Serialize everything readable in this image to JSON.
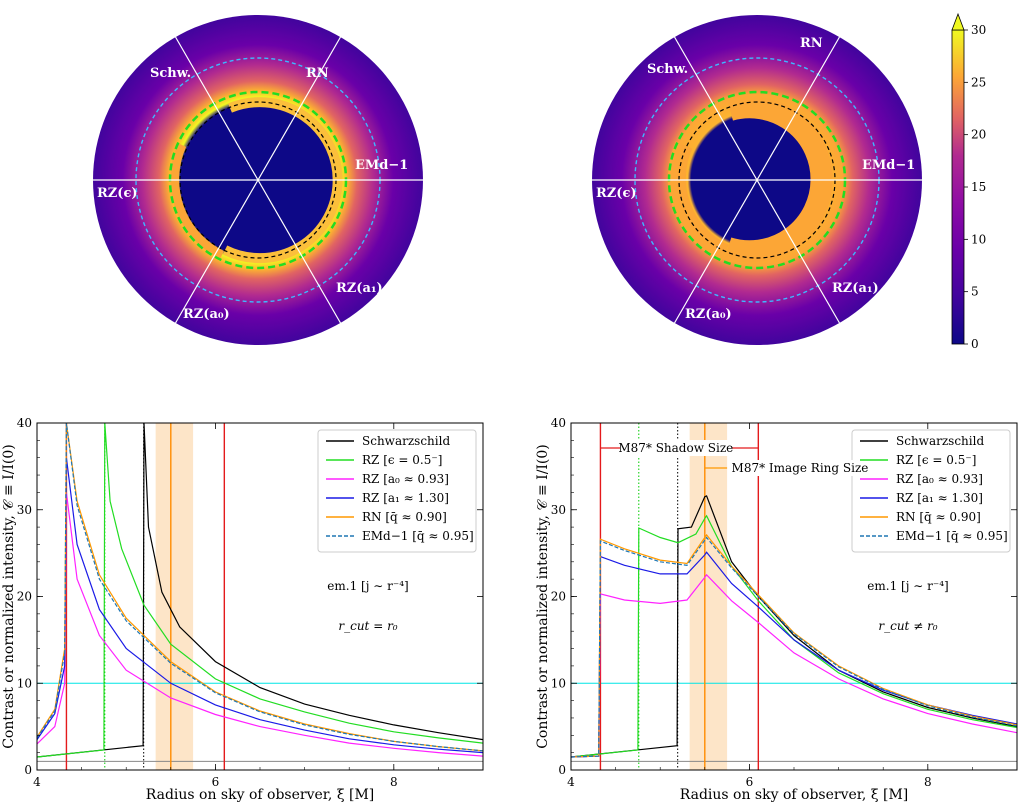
{
  "images": {
    "sector_labels": [
      "RN",
      "Schw.",
      "EMd−1",
      "RZ(ϵ)",
      "RZ(a₁)",
      "RZ(a₀)"
    ],
    "colorbar": {
      "ticks": [
        0,
        5,
        10,
        15,
        20,
        25,
        30
      ],
      "min": 0,
      "max": 30,
      "extend": "max",
      "colormap": "plasma"
    }
  },
  "chart_data": [
    {
      "type": "line",
      "panel": "left",
      "xlabel": "Radius on sky of observer, ξ [M]",
      "ylabel": "Contrast or normalized intensity, 𝒞 ≡ I/I(0)",
      "xlim": [
        4,
        9
      ],
      "ylim": [
        0,
        40
      ],
      "xticks": [
        4,
        6,
        8
      ],
      "yticks": [
        0,
        10,
        20,
        30,
        40
      ],
      "note_model": "em.1",
      "note_emissivity": "[j ∼ r⁻⁴]",
      "note_cut": "r_cut = r₀",
      "hlines": [
        {
          "y": 10,
          "color": "#00e5e5"
        },
        {
          "y": 1,
          "color": "#888888"
        }
      ],
      "vlines": [
        {
          "x": 4.33,
          "color": "#e41a1c",
          "style": "solid"
        },
        {
          "x": 6.1,
          "color": "#e41a1c",
          "style": "solid"
        },
        {
          "x": 5.5,
          "color": "#ff8c00",
          "style": "solid"
        },
        {
          "x": 4.76,
          "color": "#00cc00",
          "style": "dotted"
        },
        {
          "x": 5.196,
          "color": "#000000",
          "style": "dotted"
        }
      ],
      "band": {
        "x0": 5.33,
        "x1": 5.75,
        "color": "#fde5c8"
      },
      "series": [
        {
          "name": "Schwarzschild",
          "color": "#000000",
          "dash": false,
          "x": [
            4.0,
            5.19,
            5.2,
            5.25,
            5.4,
            5.6,
            6.0,
            6.5,
            7.0,
            7.5,
            8.0,
            8.5,
            9.0
          ],
          "values": [
            1.5,
            2.8,
            40,
            28,
            20.5,
            16.5,
            12.5,
            9.5,
            7.6,
            6.3,
            5.2,
            4.3,
            3.5
          ]
        },
        {
          "name": "RZ [ϵ = 0.5⁻]",
          "color": "#22dd22",
          "dash": false,
          "x": [
            4.0,
            4.75,
            4.76,
            4.82,
            4.95,
            5.2,
            5.5,
            6.0,
            6.5,
            7.0,
            7.5,
            8.0,
            8.5,
            9.0
          ],
          "values": [
            1.5,
            2.3,
            40,
            31,
            25.5,
            19,
            14.5,
            10.5,
            8.2,
            6.7,
            5.4,
            4.4,
            3.7,
            3.1
          ]
        },
        {
          "name": "RZ [a₀ ≈ 0.93]",
          "color": "#ff22ff",
          "dash": false,
          "x": [
            4.0,
            4.2,
            4.31,
            4.33,
            4.45,
            4.7,
            5.0,
            5.5,
            6.0,
            6.5,
            7.0,
            7.5,
            8.0,
            8.5,
            9.0
          ],
          "values": [
            3.0,
            5.0,
            10,
            32,
            22,
            15.5,
            11.5,
            8.3,
            6.4,
            5.0,
            4.0,
            3.1,
            2.5,
            2.0,
            1.6
          ]
        },
        {
          "name": "RZ [a₁ ≈ 1.30]",
          "color": "#1a1ae6",
          "dash": false,
          "x": [
            4.0,
            4.2,
            4.31,
            4.33,
            4.45,
            4.7,
            5.0,
            5.5,
            6.0,
            6.5,
            7.0,
            7.5,
            8.0,
            8.5,
            9.0
          ],
          "values": [
            3.5,
            6.5,
            12,
            36,
            26,
            18.5,
            14.0,
            10.0,
            7.5,
            5.8,
            4.6,
            3.6,
            2.9,
            2.4,
            2.0
          ]
        },
        {
          "name": "RN [q̄ ≈ 0.90]",
          "color": "#ff9900",
          "dash": false,
          "x": [
            4.0,
            4.2,
            4.31,
            4.33,
            4.45,
            4.7,
            5.0,
            5.5,
            6.0,
            6.5,
            7.0,
            7.5,
            8.0,
            8.5,
            9.0
          ],
          "values": [
            3.8,
            7.0,
            14,
            40,
            31,
            22.5,
            17.5,
            12.5,
            9.0,
            6.8,
            5.3,
            4.2,
            3.3,
            2.7,
            2.2
          ]
        },
        {
          "name": "EMd−1 [q̄ ≈ 0.95]",
          "color": "#1f77b4",
          "dash": true,
          "x": [
            4.0,
            4.2,
            4.31,
            4.33,
            4.45,
            4.7,
            5.0,
            5.5,
            6.0,
            6.5,
            7.0,
            7.5,
            8.0,
            8.5,
            9.0
          ],
          "values": [
            3.7,
            6.8,
            13.5,
            40,
            30.5,
            22,
            17.2,
            12.3,
            8.9,
            6.7,
            5.2,
            4.1,
            3.3,
            2.7,
            2.2
          ]
        }
      ]
    },
    {
      "type": "line",
      "panel": "right",
      "xlabel": "Radius on sky of observer, ξ [M]",
      "ylabel": "Contrast or normalized intensity, 𝒞 ≡ I/I(0)",
      "xlim": [
        4,
        9
      ],
      "ylim": [
        0,
        40
      ],
      "xticks": [
        4,
        6,
        8
      ],
      "yticks": [
        0,
        10,
        20,
        30,
        40
      ],
      "note_model": "em.1",
      "note_emissivity": "[j ∼ r⁻⁴]",
      "note_cut": "r_cut ≠ r₀",
      "annotation_shadow": "M87* Shadow Size",
      "annotation_ring": "M87* Image Ring Size",
      "hlines": [
        {
          "y": 10,
          "color": "#00e5e5"
        },
        {
          "y": 1,
          "color": "#888888"
        }
      ],
      "vlines": [
        {
          "x": 4.33,
          "color": "#e41a1c",
          "style": "solid"
        },
        {
          "x": 6.1,
          "color": "#e41a1c",
          "style": "solid"
        },
        {
          "x": 5.5,
          "color": "#ff8c00",
          "style": "solid"
        },
        {
          "x": 4.76,
          "color": "#00cc00",
          "style": "dotted"
        },
        {
          "x": 5.196,
          "color": "#000000",
          "style": "dotted"
        }
      ],
      "band": {
        "x0": 5.33,
        "x1": 5.75,
        "color": "#fde5c8"
      },
      "series": [
        {
          "name": "Schwarzschild",
          "color": "#000000",
          "dash": false,
          "x": [
            4.0,
            5.19,
            5.2,
            5.35,
            5.5,
            5.52,
            5.8,
            6.1,
            6.5,
            7.0,
            7.5,
            8.0,
            8.5,
            9.0
          ],
          "values": [
            1.5,
            2.8,
            27.8,
            28.0,
            31.5,
            31.6,
            24,
            20,
            15.5,
            11.5,
            9.0,
            7.2,
            6.0,
            5.0
          ]
        },
        {
          "name": "RZ [ϵ = 0.5⁻]",
          "color": "#22dd22",
          "dash": false,
          "x": [
            4.0,
            4.75,
            4.76,
            5.0,
            5.2,
            5.4,
            5.5,
            5.52,
            5.8,
            6.1,
            6.5,
            7.0,
            7.5,
            8.0,
            8.5,
            9.0
          ],
          "values": [
            1.5,
            2.3,
            27.9,
            26.8,
            26.2,
            27.2,
            29.0,
            29.3,
            23.5,
            19.5,
            15,
            11.2,
            8.8,
            7.0,
            5.8,
            4.9
          ]
        },
        {
          "name": "RZ [a₀ ≈ 0.93]",
          "color": "#ff22ff",
          "dash": false,
          "x": [
            4.0,
            4.31,
            4.33,
            4.6,
            5.0,
            5.3,
            5.5,
            5.52,
            5.8,
            6.1,
            6.5,
            7.0,
            7.5,
            8.0,
            8.5,
            9.0
          ],
          "values": [
            1.5,
            1.6,
            20.3,
            19.6,
            19.2,
            19.6,
            22.2,
            22.5,
            19.5,
            17,
            13.5,
            10.5,
            8.2,
            6.5,
            5.3,
            4.3
          ]
        },
        {
          "name": "RZ [a₁ ≈ 1.30]",
          "color": "#1a1ae6",
          "dash": false,
          "x": [
            4.0,
            4.31,
            4.33,
            4.6,
            5.0,
            5.3,
            5.5,
            5.52,
            5.8,
            6.1,
            6.5,
            7.0,
            7.5,
            8.0,
            8.5,
            9.0
          ],
          "values": [
            1.5,
            1.6,
            24.6,
            23.6,
            22.6,
            22.6,
            24.8,
            25.1,
            21.5,
            18.8,
            15,
            11.5,
            9.2,
            7.5,
            6.3,
            5.3
          ]
        },
        {
          "name": "RN [q̄ ≈ 0.90]",
          "color": "#ff9900",
          "dash": false,
          "x": [
            4.0,
            4.31,
            4.33,
            4.6,
            5.0,
            5.3,
            5.5,
            5.52,
            5.8,
            6.1,
            6.5,
            7.0,
            7.5,
            8.0,
            8.5,
            9.0
          ],
          "values": [
            1.5,
            1.6,
            26.6,
            25.5,
            24.2,
            23.8,
            26.8,
            27.1,
            23.5,
            20.2,
            15.8,
            12,
            9.4,
            7.5,
            6.2,
            5.2
          ]
        },
        {
          "name": "EMd−1 [q̄ ≈ 0.95]",
          "color": "#1f77b4",
          "dash": true,
          "x": [
            4.0,
            4.31,
            4.33,
            4.6,
            5.0,
            5.3,
            5.5,
            5.52,
            5.8,
            6.1,
            6.5,
            7.0,
            7.5,
            8.0,
            8.5,
            9.0
          ],
          "values": [
            1.5,
            1.6,
            26.4,
            25.3,
            24.0,
            23.6,
            26.5,
            26.8,
            23.3,
            20.0,
            15.7,
            11.9,
            9.3,
            7.4,
            6.1,
            5.1
          ]
        }
      ]
    }
  ]
}
